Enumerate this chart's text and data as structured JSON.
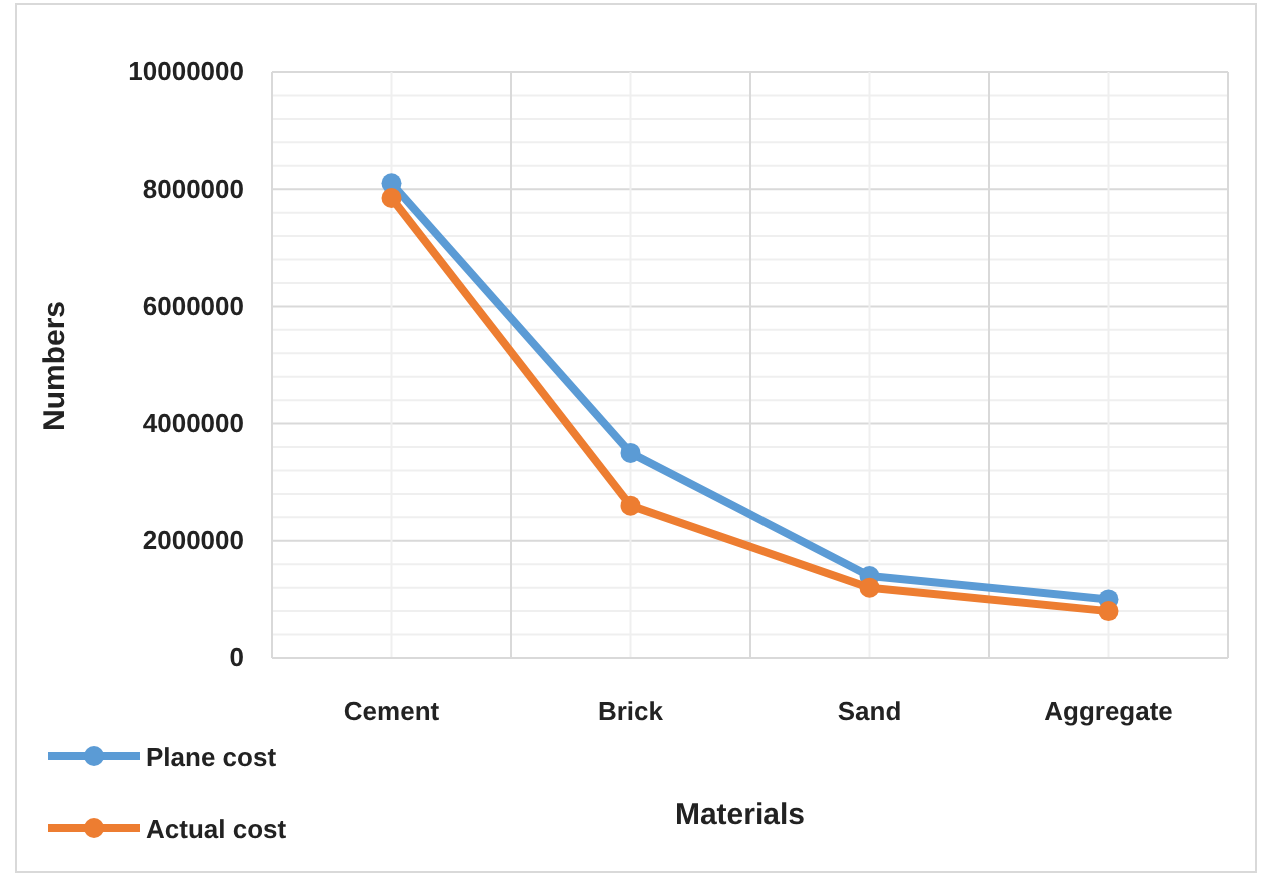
{
  "chart_data": {
    "type": "line",
    "xlabel": "Materials",
    "ylabel": "Numbers",
    "categories": [
      "Cement",
      "Brick",
      "Sand",
      "Aggregate"
    ],
    "series": [
      {
        "name": "Plane cost",
        "color": "#5b9bd5",
        "values": [
          8100000,
          3500000,
          1400000,
          1000000
        ]
      },
      {
        "name": "Actual cost",
        "color": "#ed7d31",
        "values": [
          7850000,
          2600000,
          1200000,
          800000
        ]
      }
    ],
    "ylim": [
      0,
      10000000
    ],
    "yticks": [
      0,
      {
        "value": 400000,
        "label": null
      },
      {
        "value": 800000,
        "label": null
      },
      {
        "value": 1200000,
        "label": null
      },
      {
        "value": 1600000,
        "label": null
      },
      2000000,
      {
        "value": 2400000,
        "label": null
      },
      {
        "value": 2800000,
        "label": null
      },
      {
        "value": 3200000,
        "label": null
      },
      {
        "value": 3600000,
        "label": null
      },
      4000000,
      {
        "value": 4400000,
        "label": null
      },
      {
        "value": 4800000,
        "label": null
      },
      {
        "value": 5200000,
        "label": null
      },
      {
        "value": 5600000,
        "label": null
      },
      6000000,
      {
        "value": 6400000,
        "label": null
      },
      {
        "value": 6800000,
        "label": null
      },
      {
        "value": 7200000,
        "label": null
      },
      {
        "value": 7600000,
        "label": null
      },
      8000000,
      {
        "value": 8400000,
        "label": null
      },
      {
        "value": 8800000,
        "label": null
      },
      {
        "value": 9200000,
        "label": null
      },
      {
        "value": 9600000,
        "label": null
      },
      10000000
    ],
    "grid": true,
    "legend": "bottom left",
    "marker": "circle",
    "line_style": "solid"
  }
}
